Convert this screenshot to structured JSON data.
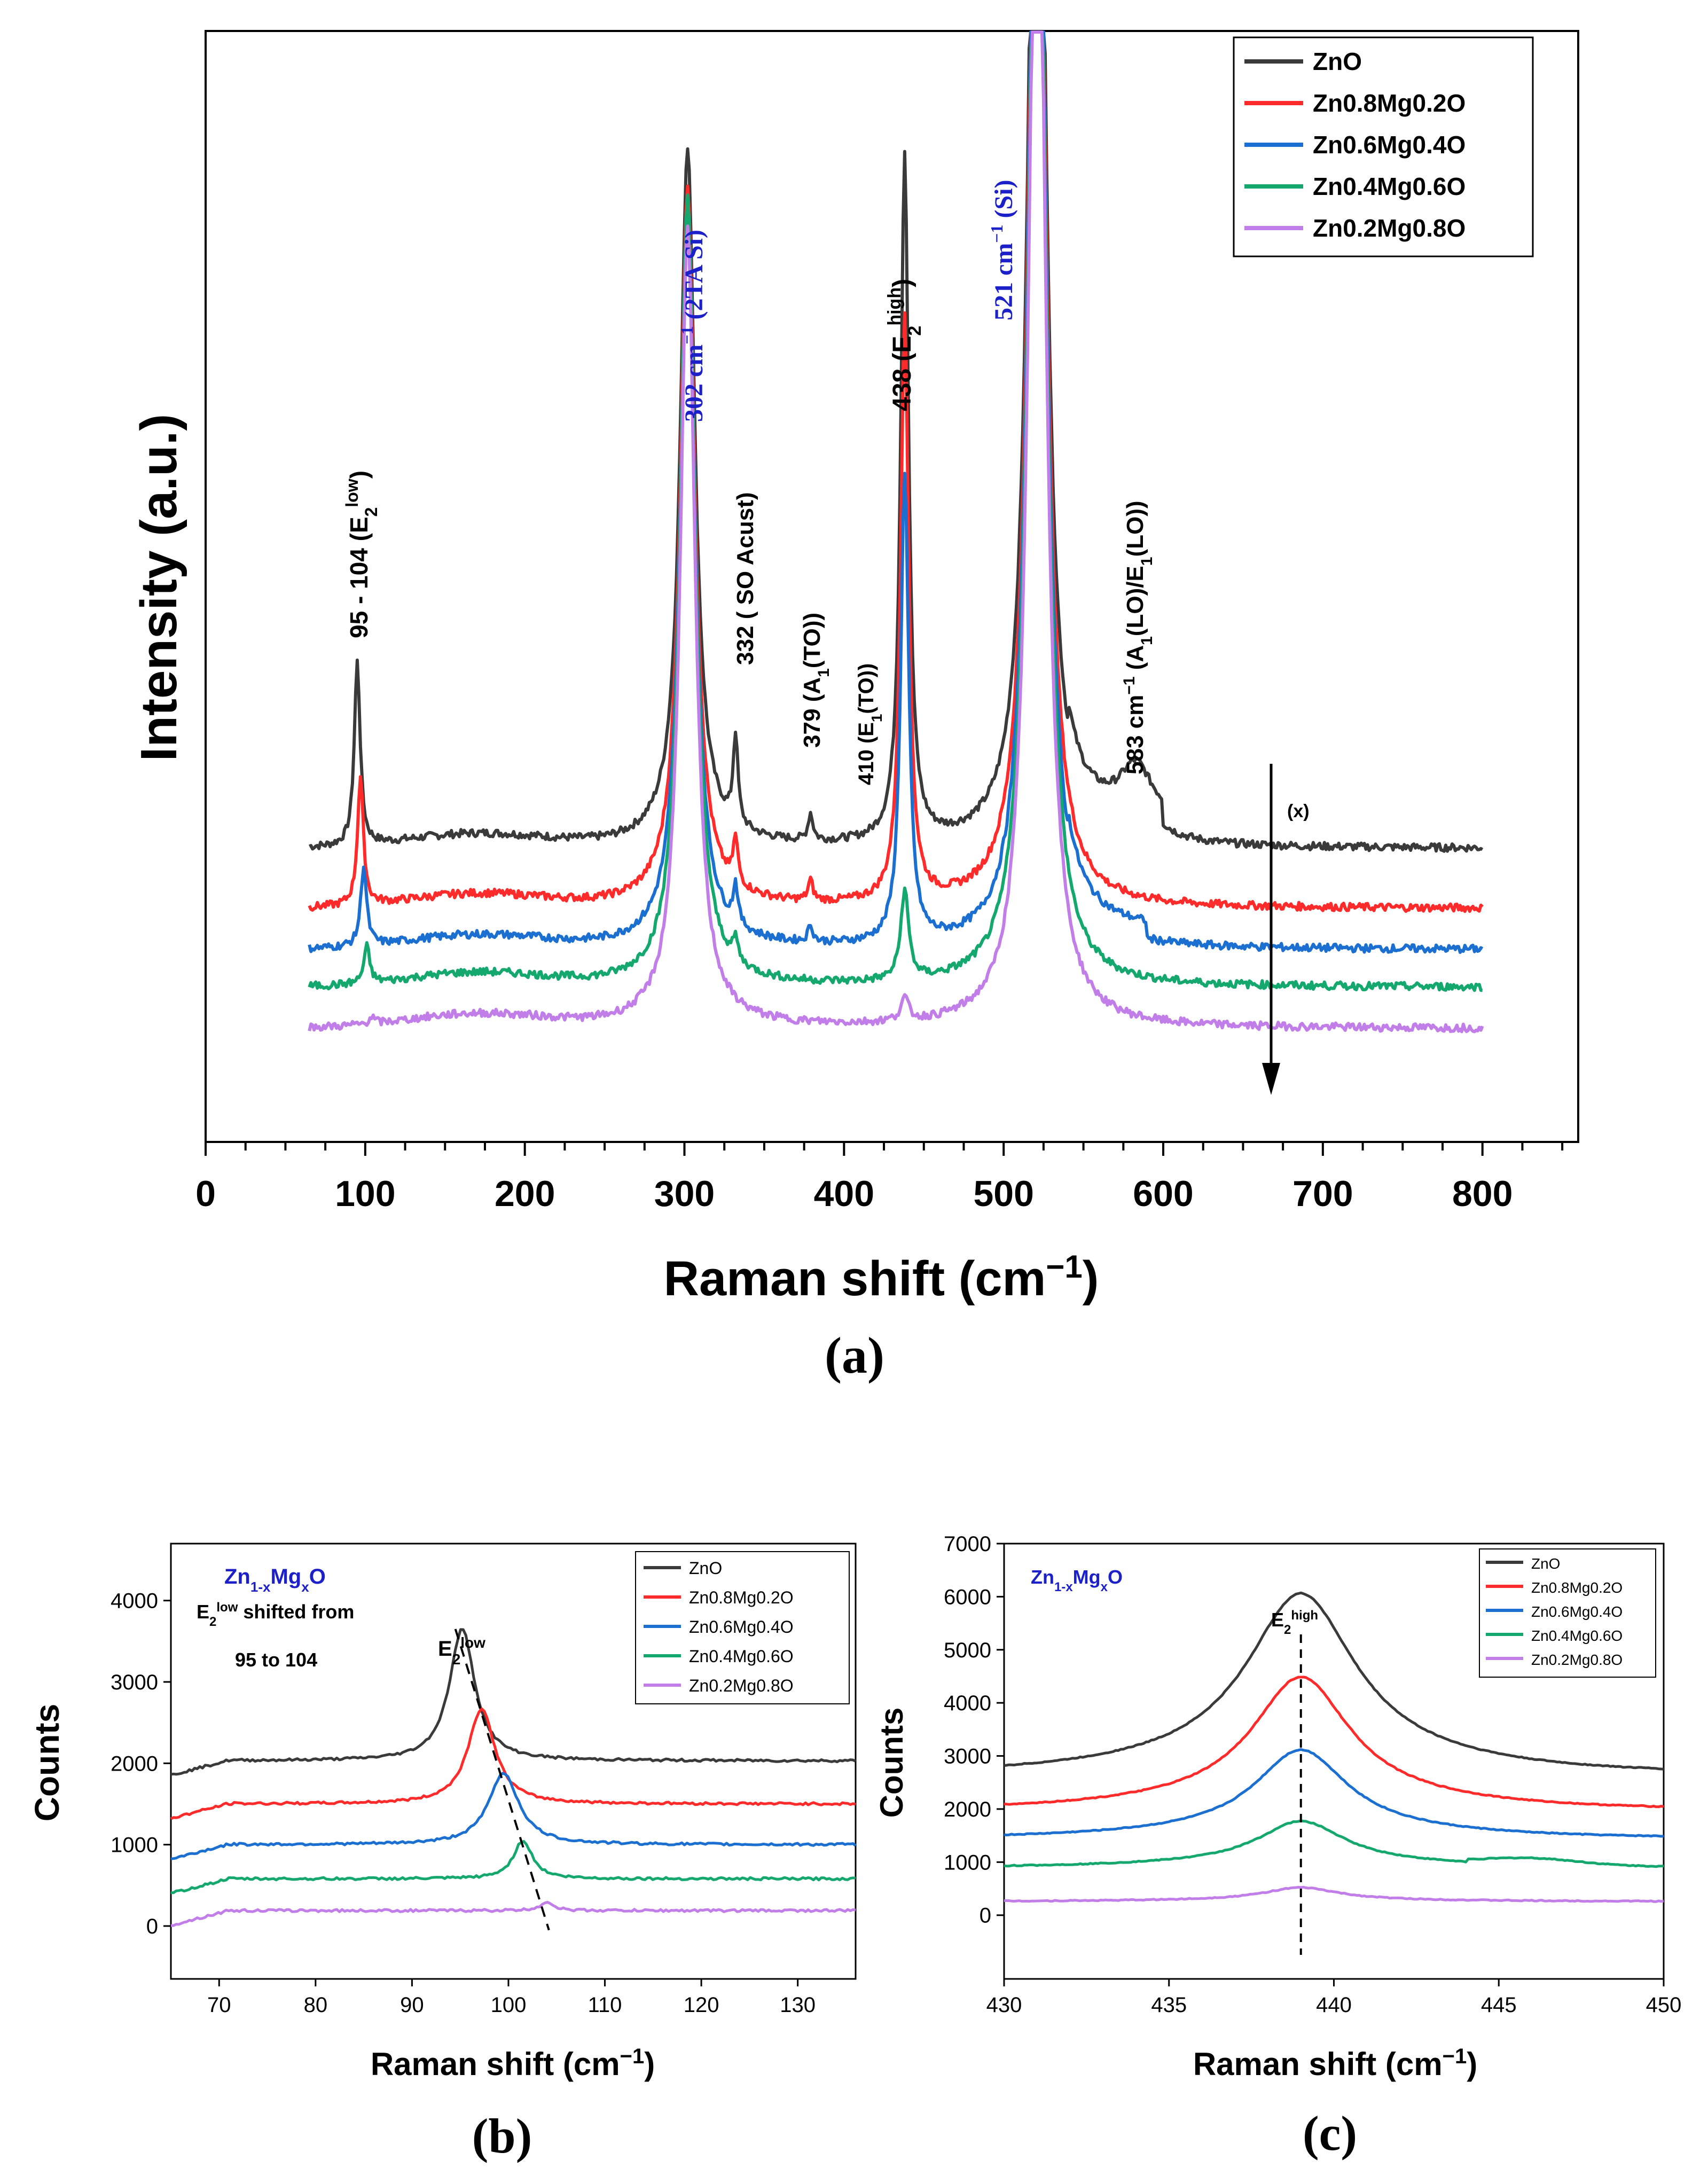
{
  "colors": {
    "zno": "#3a3a3a",
    "zn08": "#ff2a2a",
    "zn06": "#1a6fd0",
    "zn04": "#14a86e",
    "zn02": "#c27ee8",
    "blue_label": "#1c20c8",
    "axis": "#000000"
  },
  "chart_data": [
    {
      "id": "a",
      "type": "line",
      "panel_label": "(a)",
      "xlabel": "Raman shift",
      "xlabel_unit": "(cm",
      "xlabel_sup": "−1",
      "xlabel_close": ")",
      "ylabel": "Intensity (a.u.)",
      "xlim": [
        0,
        860
      ],
      "ylim": [
        0,
        100
      ],
      "xticks": [
        0,
        100,
        200,
        300,
        400,
        500,
        600,
        700,
        800
      ],
      "x_range": [
        65,
        800
      ],
      "legend": [
        "ZnO",
        "Zn0.8Mg0.2O",
        "Zn0.6Mg0.4O",
        "Zn0.4Mg0.6O",
        "Zn0.2Mg0.8O"
      ],
      "series": [
        {
          "name": "ZnO",
          "color_key": "zno",
          "baseline": 26.4,
          "scale": 1.0
        },
        {
          "name": "Zn0.8Mg0.2O",
          "color_key": "zn08",
          "baseline": 21.0,
          "scale": 0.9
        },
        {
          "name": "Zn0.6Mg0.4O",
          "color_key": "zn06",
          "baseline": 17.3,
          "scale": 0.85
        },
        {
          "name": "Zn0.4Mg0.6O",
          "color_key": "zn04",
          "baseline": 13.9,
          "scale": 0.8
        },
        {
          "name": "Zn0.2Mg0.8O",
          "color_key": "zn02",
          "baseline": 10.2,
          "scale": 0.7
        }
      ],
      "peaks": [
        {
          "series": "ZnO",
          "positions": [
            95,
            302,
            332,
            379,
            438,
            521,
            583
          ],
          "heights": [
            16.5,
            62,
            8,
            2.4,
            62,
            120,
            4.5
          ]
        },
        {
          "series": "Zn0.8Mg0.2O",
          "positions": [
            97,
            302,
            332,
            379,
            438,
            521
          ],
          "heights": [
            11.5,
            64,
            4,
            1.8,
            53,
            120
          ]
        },
        {
          "series": "Zn0.6Mg0.4O",
          "positions": [
            99,
            302,
            332,
            379,
            438,
            521
          ],
          "heights": [
            7.2,
            66,
            3.5,
            1.5,
            42,
            120
          ]
        },
        {
          "series": "Zn0.4Mg0.6O",
          "positions": [
            101,
            302,
            332,
            438,
            521
          ],
          "heights": [
            3.3,
            70,
            2,
            8,
            120
          ]
        },
        {
          "series": "Zn0.2Mg0.8O",
          "positions": [
            104,
            302,
            438,
            521
          ],
          "heights": [
            0.6,
            71,
            2,
            120
          ]
        }
      ],
      "annotations": {
        "e2low": "95 - 104 (E",
        "e2low_sub": "2",
        "e2low_sup": "low",
        "e2low_close": ")",
        "si302": "302 cm",
        "si302_sup": "−1",
        "si302_rest": " (2TA Si)",
        "so332": "332 ( SO Acust)",
        "a1to": "379 (A",
        "a1to_sub": "1",
        "a1to_rest": "(TO))",
        "e1to": "410 (E",
        "e1to_sub": "1",
        "e1to_rest": "(TO))",
        "e2high": "438 (E",
        "e2high_sub": "2",
        "e2high_sup": "high",
        "e2high_close": ")",
        "si521": "521 cm",
        "si521_sup": "−1",
        "si521_rest": " (Si)",
        "lo583": "583 cm",
        "lo583_sup": "−1",
        "lo583_mid": " (A",
        "lo583_sub1": "1",
        "lo583_mid2": "(LO)/E",
        "lo583_sub2": "1",
        "lo583_end": "(LO))",
        "arrow": "(x)"
      }
    },
    {
      "id": "b",
      "type": "line",
      "panel_label": "(b)",
      "xlabel": "Raman shift",
      "xlabel_unit": "(cm",
      "xlabel_sup": "−1",
      "xlabel_close": ")",
      "ylabel": "Counts",
      "xlim": [
        65,
        136
      ],
      "ylim": [
        -650,
        4700
      ],
      "xticks": [
        70,
        80,
        90,
        100,
        110,
        120,
        130
      ],
      "yticks": [
        0,
        1000,
        2000,
        3000,
        4000
      ],
      "title": "Zn",
      "title_sub1": "1-x",
      "title_mid": "Mg",
      "title_sub2": "x",
      "title_end": "O",
      "note_prefix": "E",
      "note_sub": "2",
      "note_sup": "low",
      "note_suffix": " shifted from",
      "note_line2": "95 to 104",
      "peak_label": "E",
      "peak_label_sub": "2",
      "peak_label_sup": "low",
      "legend": [
        "ZnO",
        "Zn0.8Mg0.2O",
        "Zn0.6Mg0.4O",
        "Zn0.4Mg0.6O",
        "Zn0.2Mg0.8O"
      ],
      "series": [
        {
          "name": "ZnO",
          "color_key": "zno",
          "baseline": 2030,
          "peak_x": 95.2,
          "peak_h": 1620,
          "width": 1.6
        },
        {
          "name": "Zn0.8Mg0.2O",
          "color_key": "zn08",
          "baseline": 1500,
          "peak_x": 97.2,
          "peak_h": 1170,
          "width": 1.7
        },
        {
          "name": "Zn0.6Mg0.4O",
          "color_key": "zn06",
          "baseline": 1000,
          "peak_x": 99.5,
          "peak_h": 880,
          "width": 1.9
        },
        {
          "name": "Zn0.4Mg0.6O",
          "color_key": "zn04",
          "baseline": 580,
          "peak_x": 101.5,
          "peak_h": 470,
          "width": 1.2
        },
        {
          "name": "Zn0.2Mg0.8O",
          "color_key": "zn02",
          "baseline": 190,
          "peak_x": 104,
          "peak_h": 110,
          "width": 0.8
        }
      ],
      "trend_line": {
        "x": [
          94.5,
          104.2
        ],
        "y": [
          3650,
          -50
        ]
      }
    },
    {
      "id": "c",
      "type": "line",
      "panel_label": "(c)",
      "xlabel": "Raman shift",
      "xlabel_unit": "(cm",
      "xlabel_sup": "−1",
      "xlabel_close": ")",
      "ylabel": "Counts",
      "xlim": [
        430,
        450
      ],
      "ylim": [
        -1200,
        7000
      ],
      "xticks": [
        430,
        435,
        440,
        445,
        450
      ],
      "yticks": [
        0,
        1000,
        2000,
        3000,
        4000,
        5000,
        6000,
        7000
      ],
      "title": "Zn",
      "title_sub1": "1-x",
      "title_mid": "Mg",
      "title_sub2": "x",
      "title_end": "O",
      "peak_label": "E",
      "peak_label_sub": "2",
      "peak_label_sup": "high",
      "legend": [
        "ZnO",
        "Zn0.8Mg0.2O",
        "Zn0.6Mg0.4O",
        "Zn0.4Mg0.6O",
        "Zn0.2Mg0.8O"
      ],
      "series": [
        {
          "name": "ZnO",
          "color_key": "zno",
          "baseline": 2650,
          "peak_x": 439,
          "peak_h": 3200,
          "width": 2.0
        },
        {
          "name": "Zn0.8Mg0.2O",
          "color_key": "zn08",
          "baseline": 1980,
          "peak_x": 439,
          "peak_h": 2350,
          "width": 1.8
        },
        {
          "name": "Zn0.6Mg0.4O",
          "color_key": "zn06",
          "baseline": 1450,
          "peak_x": 439,
          "peak_h": 1550,
          "width": 1.7
        },
        {
          "name": "Zn0.4Mg0.6O",
          "color_key": "zn04",
          "baseline": 900,
          "peak_x": 439,
          "peak_h": 800,
          "width": 1.6
        },
        {
          "name": "Zn0.2Mg0.8O",
          "color_key": "zn02",
          "baseline": 260,
          "peak_x": 439,
          "peak_h": 240,
          "width": 1.4
        }
      ],
      "dashed_x": 439
    }
  ]
}
